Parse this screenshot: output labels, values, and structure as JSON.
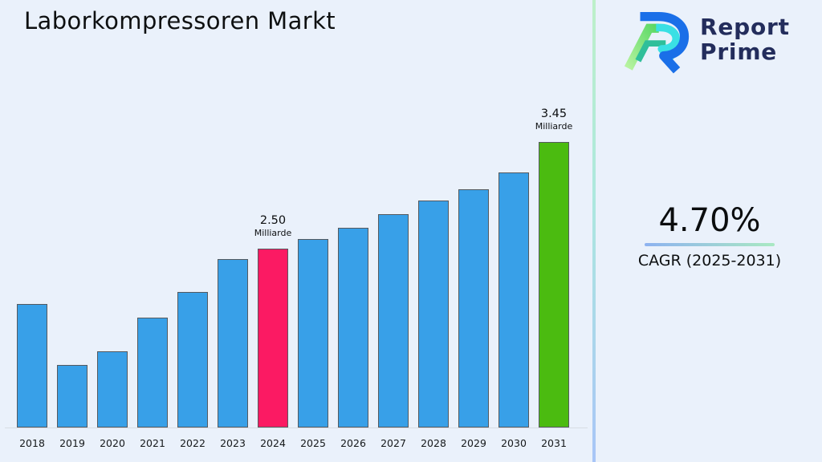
{
  "page": {
    "title": "Laborkompressoren Markt",
    "background": "#eaf1fb"
  },
  "logo": {
    "line1": "Report",
    "line2": "Prime",
    "colors": {
      "navy": "#232d5c",
      "blue": "#1a6fe8",
      "cyan": "#3ae0e4",
      "green_light": "#b7f3a0",
      "green": "#58d763",
      "teal": "#2fbf9a"
    }
  },
  "cagr": {
    "value": "4.70%",
    "label": "CAGR (2025-2031)"
  },
  "chart_data": {
    "type": "bar",
    "title": "Laborkompressoren Markt",
    "xlabel": "",
    "ylabel": "",
    "unit": "Milliarde",
    "categories": [
      "2018",
      "2019",
      "2020",
      "2021",
      "2022",
      "2023",
      "2024",
      "2025",
      "2026",
      "2027",
      "2028",
      "2029",
      "2030",
      "2031"
    ],
    "values": [
      2.01,
      1.47,
      1.59,
      1.89,
      2.12,
      2.41,
      2.5,
      2.59,
      2.69,
      2.81,
      2.93,
      3.03,
      3.18,
      3.45
    ],
    "labeled_points": [
      {
        "year": "2024",
        "value": "2.50",
        "unit": "Milliarde"
      },
      {
        "year": "2031",
        "value": "3.45",
        "unit": "Milliarde"
      }
    ],
    "bar_color": "#38a0e8",
    "highlights": {
      "2024": "#fb1a63",
      "2031": "#4bbb10"
    },
    "baseline_value": 0.91,
    "ylim": [
      0.91,
      3.6
    ],
    "grid": false,
    "legend": false
  }
}
